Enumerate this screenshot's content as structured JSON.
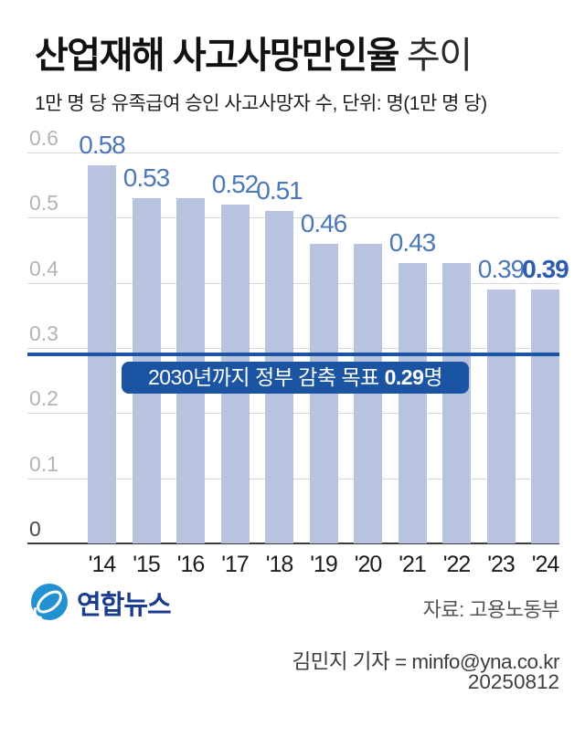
{
  "header": {
    "title_main": "산업재해 사고사망만인율",
    "title_sub": "추이",
    "subtitle": "1만 명 당 유족급여 승인 사고사망자 수, 단위: 명(1만 명 당)"
  },
  "chart_data": {
    "type": "bar",
    "title": "산업재해 사고사망만인율 추이",
    "ylabel": "명(1만 명 당)",
    "categories": [
      "'14",
      "'15",
      "'16",
      "'17",
      "'18",
      "'19",
      "'20",
      "'21",
      "'22",
      "'23",
      "'24"
    ],
    "values": [
      0.58,
      0.53,
      0.53,
      0.52,
      0.51,
      0.46,
      0.46,
      0.43,
      0.43,
      0.39,
      0.39
    ],
    "value_labels": [
      "0.58",
      "0.53",
      "",
      "0.52",
      "0.51",
      "0.46",
      "",
      "0.43",
      "",
      "0.39",
      "0.39"
    ],
    "emphasized_index": 10,
    "ylim": [
      0,
      0.6
    ],
    "yticks": [
      0,
      0.1,
      0.2,
      0.3,
      0.4,
      0.5,
      0.6
    ],
    "grid": true,
    "legend": "none",
    "target_line": {
      "value": 0.29,
      "label_prefix": "2030년까지 정부 감축 목표 ",
      "label_value": "0.29",
      "label_suffix": "명"
    },
    "colors": {
      "bar": "#b7c3df",
      "target_blue": "#1a54a2",
      "value_label": "#4c77b8",
      "value_label_emphasis": "#2d5dad",
      "gridline": "#d8d8d8",
      "axis": "#3c3c3c"
    }
  },
  "footer": {
    "logo_text": "연합뉴스",
    "logo_colors": {
      "mark_blue": "#2191d2",
      "text_navy": "#1b3c8e"
    },
    "source": "자료: 고용노동부",
    "credit": "김민지 기자 = minfo@yna.co.kr",
    "date": "20250812"
  }
}
